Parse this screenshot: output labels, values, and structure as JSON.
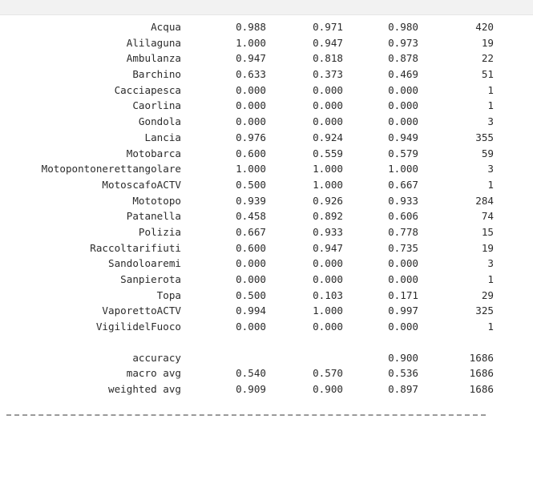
{
  "rows": [
    {
      "label": "Acqua",
      "precision": "0.988",
      "recall": "0.971",
      "f1": "0.980",
      "support": "420"
    },
    {
      "label": "Alilaguna",
      "precision": "1.000",
      "recall": "0.947",
      "f1": "0.973",
      "support": "19"
    },
    {
      "label": "Ambulanza",
      "precision": "0.947",
      "recall": "0.818",
      "f1": "0.878",
      "support": "22"
    },
    {
      "label": "Barchino",
      "precision": "0.633",
      "recall": "0.373",
      "f1": "0.469",
      "support": "51"
    },
    {
      "label": "Cacciapesca",
      "precision": "0.000",
      "recall": "0.000",
      "f1": "0.000",
      "support": "1"
    },
    {
      "label": "Caorlina",
      "precision": "0.000",
      "recall": "0.000",
      "f1": "0.000",
      "support": "1"
    },
    {
      "label": "Gondola",
      "precision": "0.000",
      "recall": "0.000",
      "f1": "0.000",
      "support": "3"
    },
    {
      "label": "Lancia",
      "precision": "0.976",
      "recall": "0.924",
      "f1": "0.949",
      "support": "355"
    },
    {
      "label": "Motobarca",
      "precision": "0.600",
      "recall": "0.559",
      "f1": "0.579",
      "support": "59"
    },
    {
      "label": "Motopontonerettangolare",
      "precision": "1.000",
      "recall": "1.000",
      "f1": "1.000",
      "support": "3"
    },
    {
      "label": "MotoscafoACTV",
      "precision": "0.500",
      "recall": "1.000",
      "f1": "0.667",
      "support": "1"
    },
    {
      "label": "Mototopo",
      "precision": "0.939",
      "recall": "0.926",
      "f1": "0.933",
      "support": "284"
    },
    {
      "label": "Patanella",
      "precision": "0.458",
      "recall": "0.892",
      "f1": "0.606",
      "support": "74"
    },
    {
      "label": "Polizia",
      "precision": "0.667",
      "recall": "0.933",
      "f1": "0.778",
      "support": "15"
    },
    {
      "label": "Raccoltarifiuti",
      "precision": "0.600",
      "recall": "0.947",
      "f1": "0.735",
      "support": "19"
    },
    {
      "label": "Sandoloaremi",
      "precision": "0.000",
      "recall": "0.000",
      "f1": "0.000",
      "support": "3"
    },
    {
      "label": "Sanpierota",
      "precision": "0.000",
      "recall": "0.000",
      "f1": "0.000",
      "support": "1"
    },
    {
      "label": "Topa",
      "precision": "0.500",
      "recall": "0.103",
      "f1": "0.171",
      "support": "29"
    },
    {
      "label": "VaporettoACTV",
      "precision": "0.994",
      "recall": "1.000",
      "f1": "0.997",
      "support": "325"
    },
    {
      "label": "VigilidelFuoco",
      "precision": "0.000",
      "recall": "0.000",
      "f1": "0.000",
      "support": "1"
    }
  ],
  "summary": [
    {
      "label": "accuracy",
      "precision": "",
      "recall": "",
      "f1": "0.900",
      "support": "1686"
    },
    {
      "label": "macro avg",
      "precision": "0.540",
      "recall": "0.570",
      "f1": "0.536",
      "support": "1686"
    },
    {
      "label": "weighted avg",
      "precision": "0.909",
      "recall": "0.900",
      "f1": "0.897",
      "support": "1686"
    }
  ]
}
